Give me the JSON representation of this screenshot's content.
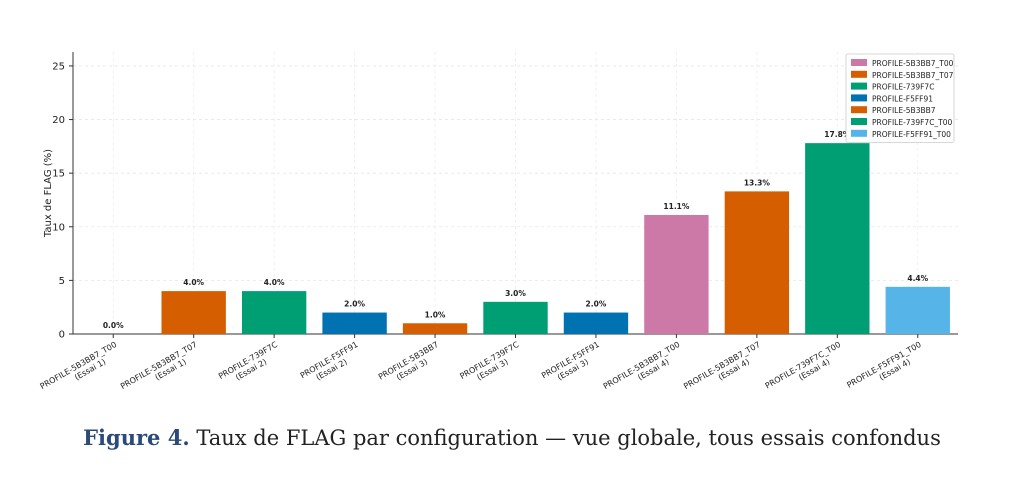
{
  "caption": {
    "label": "Figure 4.",
    "text": "Taux de FLAG par configuration — vue globale, tous essais confondus"
  },
  "chart_data": {
    "type": "bar",
    "ylabel": "Taux de FLAG (%)",
    "xlabel": "",
    "ylim": [
      0,
      26.3
    ],
    "yticks": [
      0,
      5,
      10,
      15,
      20,
      25
    ],
    "grid": true,
    "legend_position": "top-right",
    "categories": [
      [
        "PROFILE-5B3BB7_T00",
        "(Essai 1)"
      ],
      [
        "PROFILE-5B3BB7_T07",
        "(Essai 1)"
      ],
      [
        "PROFILE-739F7C",
        "(Essai 2)"
      ],
      [
        "PROFILE-F5FF91",
        "(Essai 2)"
      ],
      [
        "PROFILE-5B3BB7",
        "(Essai 3)"
      ],
      [
        "PROFILE-739F7C",
        "(Essai 3)"
      ],
      [
        "PROFILE-F5FF91",
        "(Essai 3)"
      ],
      [
        "PROFILE-5B3BB7_T00",
        "(Essai 4)"
      ],
      [
        "PROFILE-5B3BB7_T07",
        "(Essai 4)"
      ],
      [
        "PROFILE-739F7C_T00",
        "(Essai 4)"
      ],
      [
        "PROFILE-F5FF91_T00",
        "(Essai 4)"
      ]
    ],
    "values": [
      0.0,
      4.0,
      4.0,
      2.0,
      1.0,
      3.0,
      2.0,
      11.1,
      13.3,
      17.8,
      4.4
    ],
    "value_labels": [
      "0.0%",
      "4.0%",
      "4.0%",
      "2.0%",
      "1.0%",
      "3.0%",
      "2.0%",
      "11.1%",
      "13.3%",
      "17.8%",
      "4.4%"
    ],
    "bar_colors": [
      "#cc79a7",
      "#d55e00",
      "#009e73",
      "#0072b2",
      "#d55e00",
      "#009e73",
      "#0072b2",
      "#cc79a7",
      "#d55e00",
      "#009e73",
      "#56b4e9"
    ],
    "legend": [
      {
        "name": "PROFILE-5B3BB7_T00",
        "color": "#cc79a7"
      },
      {
        "name": "PROFILE-5B3BB7_T07",
        "color": "#d55e00"
      },
      {
        "name": "PROFILE-739F7C",
        "color": "#009e73"
      },
      {
        "name": "PROFILE-F5FF91",
        "color": "#0072b2"
      },
      {
        "name": "PROFILE-5B3BB7",
        "color": "#d55e00"
      },
      {
        "name": "PROFILE-739F7C_T00",
        "color": "#009e73"
      },
      {
        "name": "PROFILE-F5FF91_T00",
        "color": "#56b4e9"
      }
    ]
  }
}
